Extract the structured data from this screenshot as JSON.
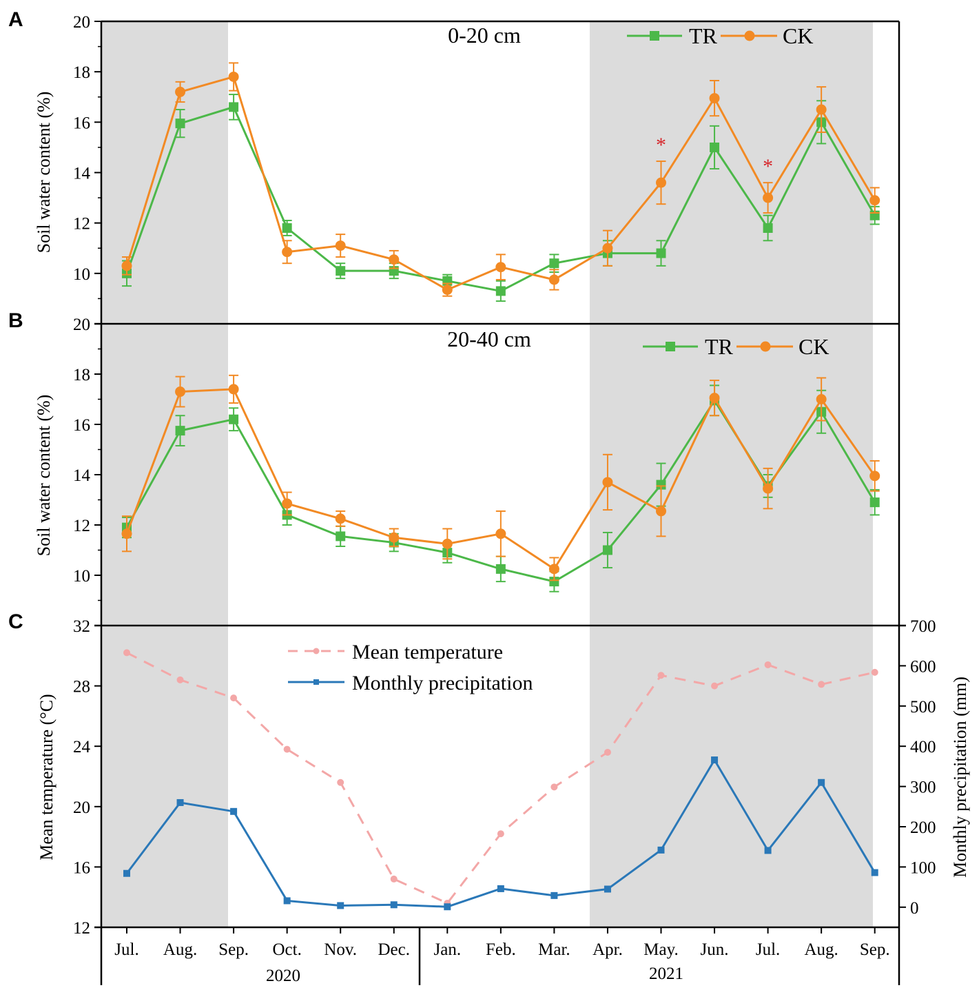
{
  "panel_letters": [
    "A",
    "B",
    "C"
  ],
  "x_axis": {
    "months": [
      "Jul.",
      "Aug.",
      "Sep.",
      "Oct.",
      "Nov.",
      "Dec.",
      "Jan.",
      "Feb.",
      "Mar.",
      "Apr.",
      "May.",
      "Jun.",
      "Jul.",
      "Aug.",
      "Sep."
    ],
    "years": [
      "2020",
      "2021"
    ]
  },
  "colors": {
    "TR": "#4cb849",
    "CK": "#f28a24",
    "temperature": "#f3a7a7",
    "precipitation": "#2a78b8",
    "shade": "#dcdcdc",
    "significance": "#d6262b"
  },
  "chart_data": [
    {
      "type": "line",
      "panel": "A",
      "title": "0-20 cm",
      "ylabel": "Soil water content (%)",
      "ylim": [
        8,
        20
      ],
      "yticks": [
        10,
        12,
        14,
        16,
        18,
        20
      ],
      "legend": "top-right",
      "series": [
        {
          "name": "TR",
          "marker": "square",
          "values": [
            10.0,
            15.95,
            16.6,
            11.8,
            10.1,
            10.1,
            9.7,
            9.3,
            10.4,
            10.8,
            10.8,
            15.0,
            11.8,
            16.0,
            12.3
          ],
          "errors": [
            0.5,
            0.55,
            0.5,
            0.3,
            0.3,
            0.3,
            0.25,
            0.4,
            0.35,
            0.5,
            0.5,
            0.85,
            0.5,
            0.85,
            0.35
          ]
        },
        {
          "name": "CK",
          "marker": "circle",
          "values": [
            10.3,
            17.2,
            17.8,
            10.85,
            11.1,
            10.55,
            9.35,
            10.25,
            9.75,
            11.0,
            13.6,
            16.95,
            13.0,
            16.5,
            12.9
          ],
          "errors": [
            0.35,
            0.4,
            0.55,
            0.45,
            0.45,
            0.35,
            0.25,
            0.5,
            0.4,
            0.7,
            0.85,
            0.7,
            0.6,
            0.9,
            0.5
          ]
        }
      ],
      "significance": [
        {
          "index": 10,
          "label": "*"
        },
        {
          "index": 12,
          "label": "*"
        }
      ]
    },
    {
      "type": "line",
      "panel": "B",
      "title": "20-40 cm",
      "ylabel": "Soil water content (%)",
      "ylim": [
        8,
        20
      ],
      "yticks": [
        10,
        12,
        14,
        16,
        18,
        20
      ],
      "legend": "top-right",
      "series": [
        {
          "name": "TR",
          "marker": "square",
          "values": [
            11.9,
            15.75,
            16.2,
            12.4,
            11.55,
            11.3,
            10.9,
            10.25,
            9.75,
            11.0,
            13.6,
            16.95,
            13.55,
            16.5,
            12.9
          ],
          "errors": [
            0.4,
            0.6,
            0.45,
            0.4,
            0.4,
            0.35,
            0.4,
            0.5,
            0.4,
            0.7,
            0.85,
            0.6,
            0.45,
            0.85,
            0.5
          ]
        },
        {
          "name": "CK",
          "marker": "circle",
          "values": [
            11.65,
            17.3,
            17.4,
            12.85,
            12.25,
            11.5,
            11.25,
            11.65,
            10.25,
            13.7,
            12.55,
            17.05,
            13.45,
            17.0,
            13.95
          ],
          "errors": [
            0.7,
            0.6,
            0.55,
            0.45,
            0.3,
            0.35,
            0.6,
            0.9,
            0.45,
            1.1,
            1.0,
            0.7,
            0.8,
            0.85,
            0.6
          ]
        }
      ]
    },
    {
      "type": "line",
      "panel": "C",
      "ylabel": "Mean temperature (°C)",
      "ylabel_right": "Monthly precipitation (mm)",
      "ylim": [
        12,
        32
      ],
      "yticks": [
        12,
        16,
        20,
        24,
        28,
        32
      ],
      "ylim_right": [
        -50,
        700
      ],
      "yticks_right": [
        0,
        100,
        200,
        300,
        400,
        500,
        600,
        700
      ],
      "legend": "top-center",
      "series": [
        {
          "name": "Mean temperature",
          "axis": "left",
          "style": "dashed",
          "marker": "circle",
          "values": [
            30.2,
            28.4,
            27.2,
            23.8,
            21.6,
            15.2,
            13.6,
            18.2,
            21.3,
            23.6,
            28.7,
            28.0,
            29.4,
            28.1,
            28.9
          ]
        },
        {
          "name": "Monthly precipitation",
          "axis": "right",
          "style": "solid",
          "marker": "square",
          "values": [
            84,
            260,
            238,
            16,
            4,
            6,
            1,
            46,
            29,
            45,
            142,
            366,
            141,
            310,
            86
          ]
        }
      ]
    }
  ]
}
